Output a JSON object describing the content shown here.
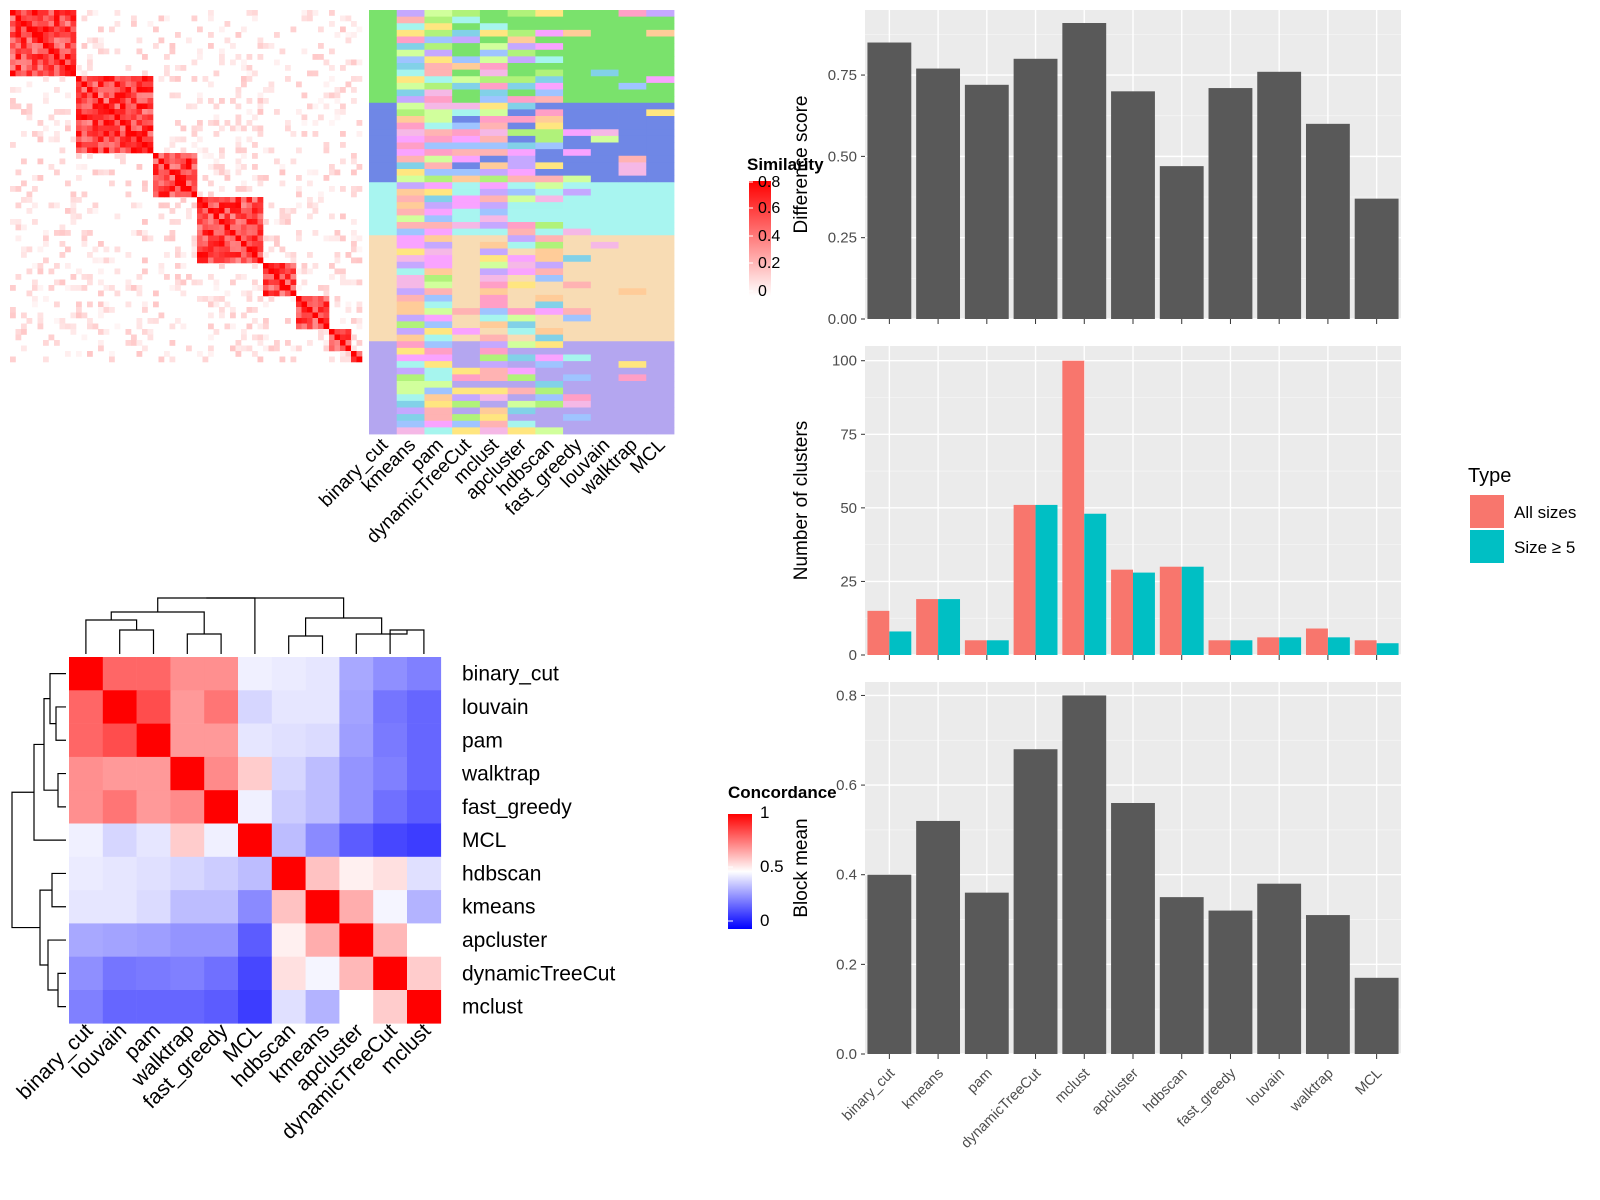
{
  "methods_main": [
    "binary_cut",
    "kmeans",
    "pam",
    "dynamicTreeCut",
    "mclust",
    "apcluster",
    "hdbscan",
    "fast_greedy",
    "louvain",
    "walktrap",
    "MCL"
  ],
  "colors": {
    "bar_fill": "#595959",
    "panel_bg": "#ebebeb",
    "grid": "#ffffff",
    "all_sizes": "#F8766D",
    "size_ge_5": "#00BFC4",
    "heat_high": "#ff0000",
    "heat_low": "#0000ff",
    "heat_mid": "#ffffff",
    "cluster_green": "#7ae26c",
    "cluster_blue": "#6f87e6",
    "cluster_cyan": "#a8f5f0",
    "cluster_wheat": "#f8dcb4",
    "cluster_lavender": "#b4a6f0"
  },
  "legends": {
    "similarity_title": "Similarity",
    "similarity_ticks": [
      "0.8",
      "0.6",
      "0.4",
      "0.2",
      "0"
    ],
    "concordance_title": "Concordance",
    "concordance_ticks": [
      "1",
      "0.5",
      "0"
    ],
    "type_title": "Type",
    "type_all": "All sizes",
    "type_ge5": "Size ≥ 5"
  },
  "chart_data": [
    {
      "type": "heatmap",
      "name": "similarity_matrix",
      "description_levels": "block-diagonal similarity matrix, values 0 to 0.8",
      "ylim": [
        0,
        0.8
      ]
    },
    {
      "type": "heatmap",
      "name": "cluster_assignments",
      "categories": [
        "binary_cut",
        "kmeans",
        "pam",
        "dynamicTreeCut",
        "mclust",
        "apcluster",
        "hdbscan",
        "fast_greedy",
        "louvain",
        "walktrap",
        "MCL"
      ]
    },
    {
      "type": "heatmap",
      "name": "concordance",
      "rows": [
        "binary_cut",
        "louvain",
        "pam",
        "walktrap",
        "fast_greedy",
        "MCL",
        "hdbscan",
        "kmeans",
        "apcluster",
        "dynamicTreeCut",
        "mclust"
      ],
      "values": [
        [
          1.0,
          0.8,
          0.8,
          0.72,
          0.72,
          0.47,
          0.46,
          0.45,
          0.33,
          0.28,
          0.25
        ],
        [
          0.8,
          1.0,
          0.85,
          0.7,
          0.77,
          0.42,
          0.45,
          0.45,
          0.32,
          0.23,
          0.2
        ],
        [
          0.8,
          0.85,
          1.0,
          0.7,
          0.7,
          0.45,
          0.44,
          0.43,
          0.31,
          0.24,
          0.2
        ],
        [
          0.72,
          0.7,
          0.7,
          1.0,
          0.73,
          0.6,
          0.42,
          0.37,
          0.29,
          0.25,
          0.2
        ],
        [
          0.72,
          0.77,
          0.7,
          0.73,
          1.0,
          0.47,
          0.4,
          0.37,
          0.29,
          0.22,
          0.18
        ],
        [
          0.47,
          0.42,
          0.45,
          0.6,
          0.47,
          1.0,
          0.37,
          0.27,
          0.18,
          0.14,
          0.12
        ],
        [
          0.46,
          0.45,
          0.44,
          0.42,
          0.4,
          0.37,
          1.0,
          0.62,
          0.53,
          0.56,
          0.44
        ],
        [
          0.45,
          0.45,
          0.43,
          0.37,
          0.37,
          0.27,
          0.62,
          1.0,
          0.66,
          0.48,
          0.35
        ],
        [
          0.33,
          0.32,
          0.31,
          0.29,
          0.29,
          0.18,
          0.53,
          0.66,
          1.0,
          0.64,
          0.5
        ],
        [
          0.28,
          0.23,
          0.24,
          0.25,
          0.22,
          0.14,
          0.56,
          0.48,
          0.64,
          1.0,
          0.6
        ],
        [
          0.25,
          0.2,
          0.2,
          0.2,
          0.18,
          0.12,
          0.44,
          0.35,
          0.5,
          0.6,
          1.0
        ]
      ],
      "ylim": [
        0,
        1
      ]
    },
    {
      "type": "bar",
      "name": "difference_score",
      "categories": [
        "binary_cut",
        "kmeans",
        "pam",
        "dynamicTreeCut",
        "mclust",
        "apcluster",
        "hdbscan",
        "fast_greedy",
        "louvain",
        "walktrap",
        "MCL"
      ],
      "values": [
        0.85,
        0.77,
        0.72,
        0.8,
        0.91,
        0.7,
        0.47,
        0.71,
        0.76,
        0.6,
        0.37
      ],
      "ylabel": "Difference score",
      "ylim": [
        0,
        0.95
      ],
      "yticks": [
        "0.00",
        "0.25",
        "0.50",
        "0.75"
      ],
      "ytick_values": [
        0,
        0.25,
        0.5,
        0.75
      ]
    },
    {
      "type": "bar",
      "name": "number_of_clusters",
      "categories": [
        "binary_cut",
        "kmeans",
        "pam",
        "dynamicTreeCut",
        "mclust",
        "apcluster",
        "hdbscan",
        "fast_greedy",
        "louvain",
        "walktrap",
        "MCL"
      ],
      "series": [
        {
          "name": "All sizes",
          "values": [
            15,
            19,
            5,
            51,
            100,
            29,
            30,
            5,
            6,
            9,
            5
          ]
        },
        {
          "name": "Size ≥ 5",
          "values": [
            8,
            19,
            5,
            51,
            48,
            28,
            30,
            5,
            6,
            6,
            4
          ]
        }
      ],
      "ylabel": "Number of clusters",
      "ylim": [
        0,
        105
      ],
      "yticks": [
        "0",
        "25",
        "50",
        "75",
        "100"
      ],
      "ytick_values": [
        0,
        25,
        50,
        75,
        100
      ],
      "legend_title": "Type",
      "legend": "right"
    },
    {
      "type": "bar",
      "name": "block_mean",
      "categories": [
        "binary_cut",
        "kmeans",
        "pam",
        "dynamicTreeCut",
        "mclust",
        "apcluster",
        "hdbscan",
        "fast_greedy",
        "louvain",
        "walktrap",
        "MCL"
      ],
      "values": [
        0.4,
        0.52,
        0.36,
        0.68,
        0.8,
        0.56,
        0.35,
        0.32,
        0.38,
        0.31,
        0.17
      ],
      "ylabel": "Block mean",
      "ylim": [
        0,
        0.83
      ],
      "yticks": [
        "0.0",
        "0.2",
        "0.4",
        "0.6",
        "0.8"
      ],
      "ytick_values": [
        0,
        0.2,
        0.4,
        0.6,
        0.8
      ]
    }
  ]
}
